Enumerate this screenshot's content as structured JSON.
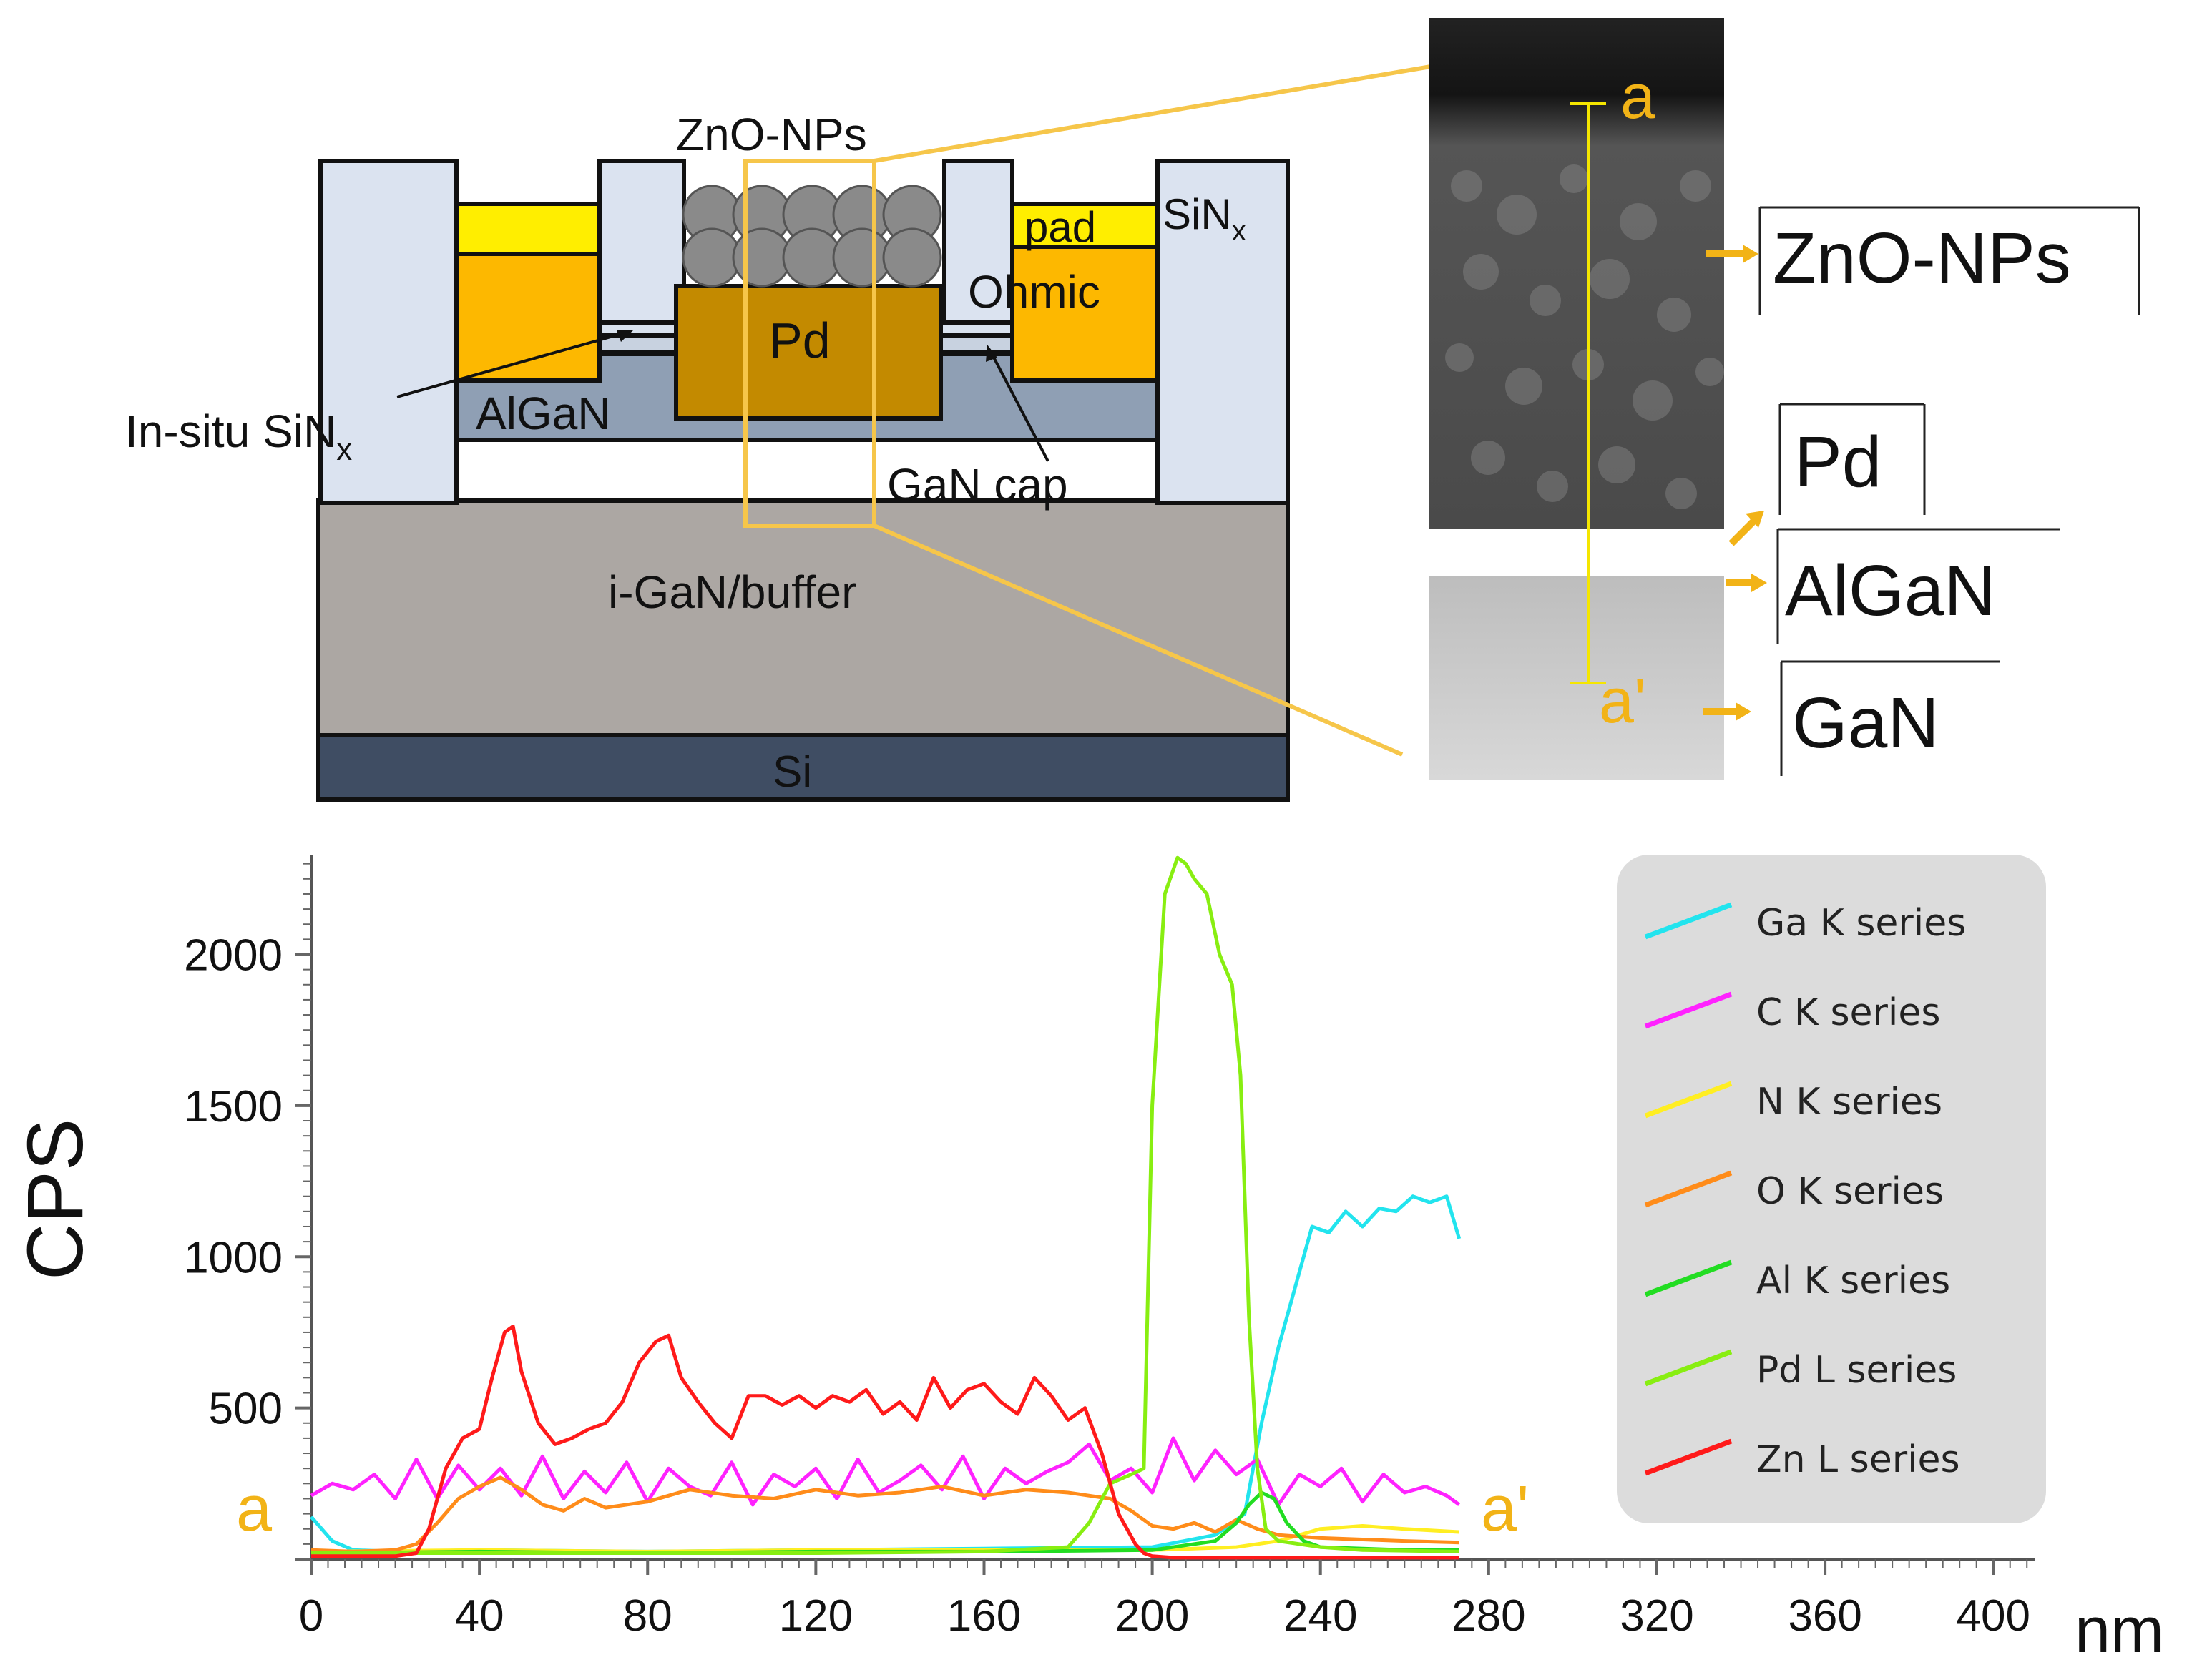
{
  "device": {
    "zno_nps": "ZnO-NPs",
    "pad": "pad",
    "sinx": "SiN",
    "sinx_sub": "x",
    "ohmic": "Ohmic",
    "pd": "Pd",
    "algan": "AlGaN",
    "insitu": "In-situ SiN",
    "insitu_sub": "x",
    "gan_cap": "GaN cap",
    "buffer": "i-GaN/buffer",
    "si": "Si"
  },
  "tem": {
    "a_label": "a",
    "a_prime_label": "a'",
    "layers": [
      "ZnO-NPs",
      "Pd",
      "AlGaN",
      "GaN"
    ]
  },
  "chart_data": {
    "type": "line",
    "ylabel": "CPS",
    "xlabel": "nm",
    "xlim": [
      0,
      410
    ],
    "ylim": [
      0,
      2330
    ],
    "x_ticks": [
      0,
      40,
      80,
      120,
      160,
      200,
      240,
      280,
      320,
      360,
      400
    ],
    "y_ticks": [
      500,
      1000,
      1500,
      2000
    ],
    "start_label": "a",
    "end_label": "a'",
    "series": [
      {
        "name": "Ga K series",
        "color": "#22e4ee",
        "x": [
          0,
          5,
          10,
          20,
          40,
          80,
          120,
          160,
          200,
          215,
          222,
          226,
          230,
          234,
          238,
          242,
          246,
          250,
          254,
          258,
          262,
          266,
          270,
          273
        ],
        "y": [
          140,
          60,
          30,
          25,
          30,
          25,
          30,
          35,
          40,
          80,
          150,
          450,
          700,
          900,
          1100,
          1080,
          1150,
          1100,
          1160,
          1150,
          1200,
          1180,
          1200,
          1060
        ]
      },
      {
        "name": "C K series",
        "color": "#ff22ff",
        "x": [
          0,
          5,
          10,
          15,
          20,
          25,
          30,
          35,
          40,
          45,
          50,
          55,
          60,
          65,
          70,
          75,
          80,
          85,
          90,
          95,
          100,
          105,
          110,
          115,
          120,
          125,
          130,
          135,
          140,
          145,
          150,
          155,
          160,
          165,
          170,
          175,
          180,
          185,
          190,
          195,
          200,
          205,
          210,
          215,
          220,
          225,
          230,
          235,
          240,
          245,
          250,
          255,
          260,
          265,
          270,
          273
        ],
        "y": [
          210,
          250,
          230,
          280,
          200,
          330,
          200,
          310,
          230,
          300,
          210,
          340,
          200,
          290,
          220,
          320,
          190,
          300,
          240,
          210,
          320,
          180,
          280,
          240,
          300,
          200,
          330,
          220,
          260,
          310,
          230,
          340,
          200,
          300,
          250,
          290,
          320,
          380,
          260,
          300,
          220,
          400,
          260,
          360,
          280,
          330,
          180,
          280,
          240,
          300,
          190,
          280,
          220,
          240,
          210,
          180
        ]
      },
      {
        "name": "N K series",
        "color": "#ffee22",
        "x": [
          0,
          40,
          80,
          120,
          160,
          200,
          220,
          230,
          240,
          250,
          260,
          273
        ],
        "y": [
          25,
          30,
          25,
          30,
          30,
          30,
          40,
          60,
          100,
          110,
          100,
          90
        ]
      },
      {
        "name": "O K series",
        "color": "#ff8c1a",
        "x": [
          0,
          10,
          20,
          25,
          30,
          35,
          40,
          45,
          50,
          55,
          60,
          65,
          70,
          80,
          90,
          100,
          110,
          120,
          130,
          140,
          150,
          160,
          170,
          180,
          190,
          195,
          200,
          205,
          210,
          215,
          220,
          225,
          230,
          240,
          250,
          260,
          273
        ],
        "y": [
          30,
          25,
          30,
          50,
          120,
          200,
          240,
          270,
          230,
          180,
          160,
          200,
          170,
          190,
          230,
          210,
          200,
          230,
          210,
          220,
          240,
          210,
          230,
          220,
          200,
          160,
          110,
          100,
          120,
          90,
          130,
          100,
          80,
          70,
          65,
          60,
          55
        ]
      },
      {
        "name": "Al K series",
        "color": "#22dd22",
        "x": [
          0,
          40,
          80,
          120,
          160,
          200,
          215,
          220,
          223,
          226,
          229,
          232,
          236,
          240,
          250,
          260,
          273
        ],
        "y": [
          20,
          25,
          20,
          25,
          25,
          30,
          60,
          120,
          180,
          220,
          200,
          120,
          60,
          40,
          35,
          30,
          30
        ]
      },
      {
        "name": "Pd L series",
        "color": "#88ee11",
        "x": [
          0,
          40,
          80,
          120,
          160,
          180,
          185,
          190,
          195,
          198,
          200,
          203,
          206,
          208,
          210,
          213,
          216,
          219,
          221,
          223,
          225,
          227,
          230,
          240,
          250,
          273
        ],
        "y": [
          20,
          20,
          20,
          20,
          25,
          40,
          120,
          250,
          280,
          300,
          1500,
          2200,
          2320,
          2300,
          2250,
          2200,
          2000,
          1900,
          1600,
          800,
          300,
          100,
          60,
          40,
          30,
          25
        ]
      },
      {
        "name": "Zn L series",
        "color": "#ff1a1a",
        "x": [
          0,
          20,
          25,
          28,
          32,
          36,
          40,
          43,
          46,
          48,
          50,
          54,
          58,
          62,
          66,
          70,
          74,
          78,
          82,
          85,
          88,
          92,
          96,
          100,
          104,
          108,
          112,
          116,
          120,
          124,
          128,
          132,
          136,
          140,
          144,
          148,
          152,
          156,
          160,
          164,
          168,
          172,
          176,
          180,
          184,
          188,
          192,
          196,
          198,
          200,
          205,
          210,
          273
        ],
        "y": [
          10,
          10,
          20,
          100,
          300,
          400,
          430,
          600,
          750,
          770,
          620,
          450,
          380,
          400,
          430,
          450,
          520,
          650,
          720,
          740,
          600,
          520,
          450,
          400,
          540,
          540,
          510,
          540,
          500,
          540,
          520,
          560,
          480,
          520,
          460,
          600,
          500,
          560,
          580,
          520,
          480,
          600,
          540,
          460,
          500,
          350,
          150,
          50,
          20,
          10,
          5,
          5,
          5
        ]
      }
    ]
  }
}
